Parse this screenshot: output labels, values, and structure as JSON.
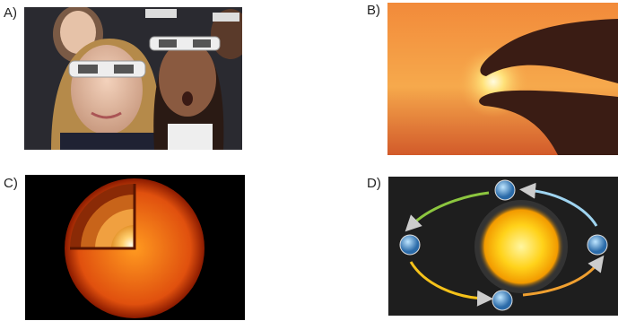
{
  "options": [
    {
      "label": "A)"
    },
    {
      "label": "B)"
    },
    {
      "label": "C)"
    },
    {
      "label": "D)"
    }
  ]
}
